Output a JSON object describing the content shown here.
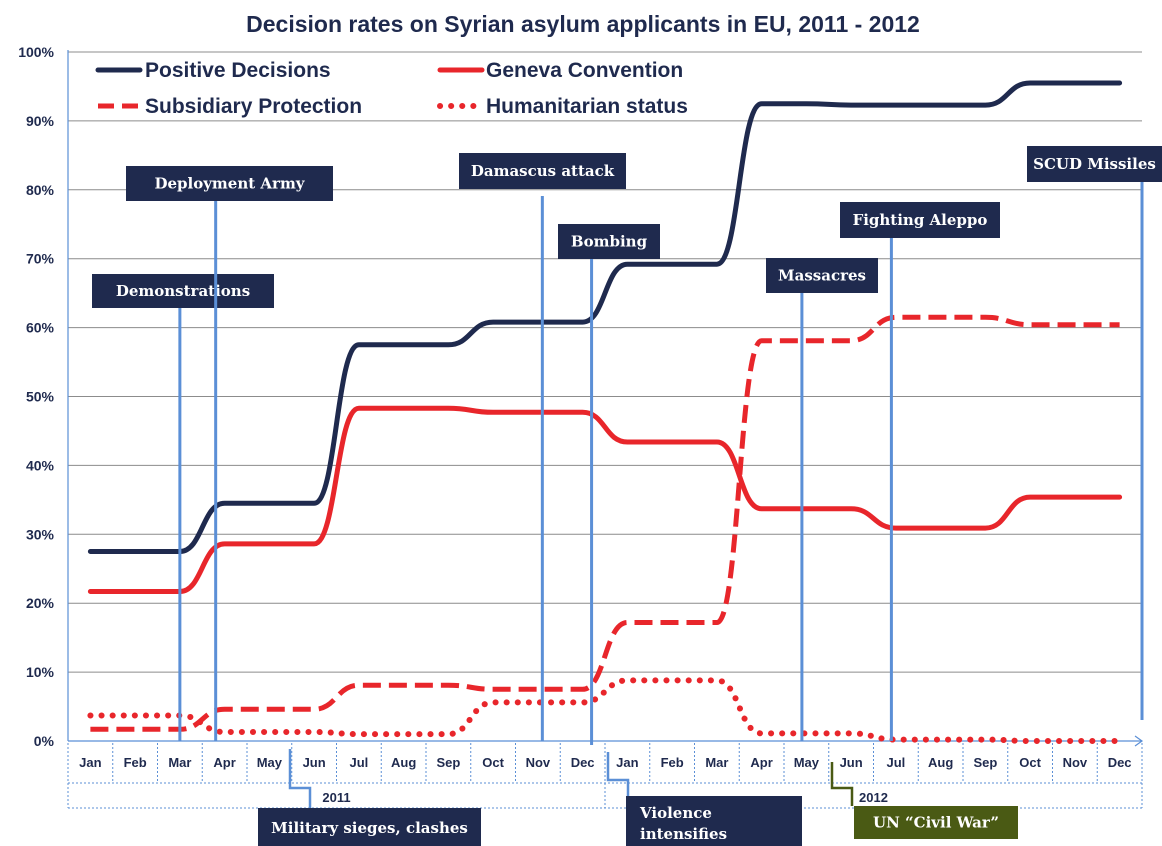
{
  "chart_data": {
    "type": "line",
    "title": "Decision rates on Syrian asylum applicants in EU, 2011 - 2012",
    "categories": [
      "Jan",
      "Feb",
      "Mar",
      "Apr",
      "May",
      "Jun",
      "Jul",
      "Aug",
      "Sep",
      "Oct",
      "Nov",
      "Dec",
      "Jan",
      "Feb",
      "Mar",
      "Apr",
      "May",
      "Jun",
      "Jul",
      "Aug",
      "Sep",
      "Oct",
      "Nov",
      "Dec"
    ],
    "year_labels": [
      "2011",
      "2012"
    ],
    "y_ticks": [
      "0%",
      "10%",
      "20%",
      "30%",
      "40%",
      "50%",
      "60%",
      "70%",
      "80%",
      "90%",
      "100%"
    ],
    "ylim": [
      0,
      100
    ],
    "grid": true,
    "legend_position": "top-left",
    "series": [
      {
        "name": "Positive Decisions",
        "color": "#1f2a4e",
        "style": "solid",
        "values": [
          27.5,
          27.5,
          27.5,
          34.5,
          34.5,
          34.5,
          57.5,
          57.5,
          57.5,
          60.8,
          60.8,
          60.8,
          69.2,
          69.2,
          69.2,
          92.5,
          92.5,
          92.3,
          92.3,
          92.3,
          92.3,
          95.5,
          95.5,
          95.5
        ]
      },
      {
        "name": "Geneva Convention",
        "color": "#e8262b",
        "style": "solid",
        "values": [
          21.7,
          21.7,
          21.7,
          28.6,
          28.6,
          28.6,
          48.3,
          48.3,
          48.3,
          47.7,
          47.7,
          47.7,
          43.4,
          43.4,
          43.4,
          33.7,
          33.7,
          33.7,
          30.9,
          30.9,
          30.9,
          35.4,
          35.4,
          35.4
        ]
      },
      {
        "name": "Subsidiary Protection",
        "color": "#e8262b",
        "style": "dashed",
        "values": [
          1.7,
          1.7,
          1.7,
          4.6,
          4.6,
          4.6,
          8.1,
          8.1,
          8.1,
          7.5,
          7.5,
          7.5,
          17.2,
          17.2,
          17.2,
          58.1,
          58.1,
          58.1,
          61.5,
          61.5,
          61.5,
          60.4,
          60.4,
          60.4
        ]
      },
      {
        "name": "Humanitarian status",
        "color": "#e8262b",
        "style": "dotted",
        "values": [
          3.7,
          3.7,
          3.7,
          1.3,
          1.3,
          1.3,
          1.0,
          1.0,
          1.0,
          5.6,
          5.6,
          5.6,
          8.8,
          8.8,
          8.8,
          1.1,
          1.1,
          1.1,
          0.2,
          0.2,
          0.2,
          0.0,
          0.0,
          0.0
        ]
      }
    ],
    "annotations": [
      {
        "label": "Demonstrations",
        "month_index": 2.0,
        "color": "#1f2a4e"
      },
      {
        "label": "Deployment Army",
        "month_index": 2.8,
        "color": "#1f2a4e"
      },
      {
        "label": "Military sieges, clashes",
        "month_index": 3.7,
        "color": "#1f2a4e"
      },
      {
        "label": "Damascus attack",
        "month_index": 10.1,
        "color": "#1f2a4e"
      },
      {
        "label": "Bombing",
        "month_index": 11.2,
        "color": "#1f2a4e"
      },
      {
        "label": "Violence intensifies",
        "month_index": 11.5,
        "color": "#1f2a4e"
      },
      {
        "label": "Massacres",
        "month_index": 15.9,
        "color": "#1f2a4e"
      },
      {
        "label": "UN “Civil War”",
        "month_index": 16.5,
        "color": "#4a5a14"
      },
      {
        "label": "Fighting Aleppo",
        "month_index": 17.9,
        "color": "#1f2a4e"
      },
      {
        "label": "SCUD Missiles",
        "month_index": 23.5,
        "color": "#1f2a4e"
      }
    ]
  }
}
